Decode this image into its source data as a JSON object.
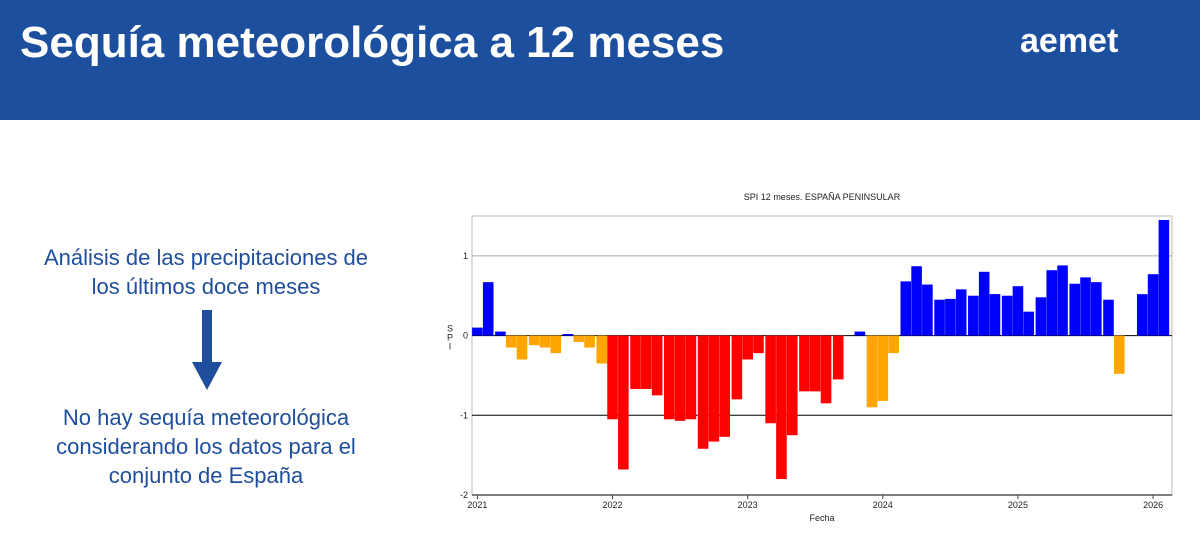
{
  "header": {
    "title": "Sequía meteorológica a 12 meses",
    "logo": "aemet"
  },
  "left": {
    "text1": [
      "Análisis de las precipitaciones de",
      "los últimos doce meses"
    ],
    "text2": [
      "No hay sequía meteorológica",
      "considerando los datos para el",
      "conjunto de España"
    ]
  },
  "chart_data": {
    "type": "bar",
    "title": "SPI 12 meses. ESPAÑA PENINSULAR",
    "xlabel": "Fecha",
    "ylabel": "SPI",
    "x": [
      2021.0,
      2021.08,
      2021.17,
      2021.25,
      2021.33,
      2021.42,
      2021.5,
      2021.58,
      2021.67,
      2021.75,
      2021.83,
      2021.92,
      2022.0,
      2022.08,
      2022.17,
      2022.25,
      2022.33,
      2022.42,
      2022.5,
      2022.58,
      2022.67,
      2022.75,
      2022.83,
      2022.92,
      2023.0,
      2023.08,
      2023.17,
      2023.25,
      2023.33,
      2023.42,
      2023.5,
      2023.58,
      2023.67,
      2023.75,
      2023.83,
      2023.92,
      2024.0,
      2024.08,
      2024.17,
      2024.25,
      2024.33,
      2024.42,
      2024.5,
      2024.58,
      2024.67,
      2024.75,
      2024.83,
      2024.92,
      2025.0,
      2025.08,
      2025.17,
      2025.25,
      2025.33,
      2025.42,
      2025.5,
      2025.58,
      2025.67,
      2025.75,
      2025.83,
      2025.92,
      2026.0,
      2026.08
    ],
    "values": [
      0.1,
      0.67,
      0.05,
      -0.15,
      -0.3,
      -0.12,
      -0.15,
      -0.22,
      0.02,
      -0.08,
      -0.15,
      -0.35,
      -1.05,
      -1.68,
      -0.67,
      -0.67,
      -0.75,
      -1.05,
      -1.07,
      -1.05,
      -1.42,
      -1.33,
      -1.27,
      -0.8,
      -0.3,
      -0.22,
      -1.1,
      -1.8,
      -1.25,
      -0.7,
      -0.7,
      -0.85,
      -0.55,
      0,
      0.05,
      -0.9,
      -0.82,
      -0.22,
      0.68,
      0.87,
      0.64,
      0.45,
      0.46,
      0.58,
      0.5,
      0.8,
      0.52,
      0.5,
      0.62,
      0.3,
      0.48,
      0.82,
      0.88,
      0.65,
      0.73,
      0.67,
      0.45,
      -0.48,
      0,
      0.52,
      0.77,
      1.45
    ],
    "colors": [
      "#0000ff",
      "#0000ff",
      "#0000ff",
      "#ffa500",
      "#ffa500",
      "#ffa500",
      "#ffa500",
      "#ffa500",
      "#0000ff",
      "#ffa500",
      "#ffa500",
      "#ffa500",
      "#ff0000",
      "#ff0000",
      "#ff0000",
      "#ff0000",
      "#ff0000",
      "#ff0000",
      "#ff0000",
      "#ff0000",
      "#ff0000",
      "#ff0000",
      "#ff0000",
      "#ff0000",
      "#ff0000",
      "#ff0000",
      "#ff0000",
      "#ff0000",
      "#ff0000",
      "#ff0000",
      "#ff0000",
      "#ff0000",
      "#ff0000",
      "#0000ff",
      "#0000ff",
      "#ffa500",
      "#ffa500",
      "#ffa500",
      "#0000ff",
      "#0000ff",
      "#0000ff",
      "#0000ff",
      "#0000ff",
      "#0000ff",
      "#0000ff",
      "#0000ff",
      "#0000ff",
      "#0000ff",
      "#0000ff",
      "#0000ff",
      "#0000ff",
      "#0000ff",
      "#0000ff",
      "#0000ff",
      "#0000ff",
      "#0000ff",
      "#0000ff",
      "#ffa500",
      "#0000ff",
      "#0000ff",
      "#0000ff",
      "#0000ff"
    ],
    "xlim": [
      2020.96,
      2026.14
    ],
    "xticks": [
      2021,
      2022,
      2023,
      2024,
      2025,
      2026
    ],
    "ylim": [
      -2,
      1.5
    ],
    "yticks": [
      -2,
      -1,
      0,
      1
    ],
    "grid": true
  }
}
